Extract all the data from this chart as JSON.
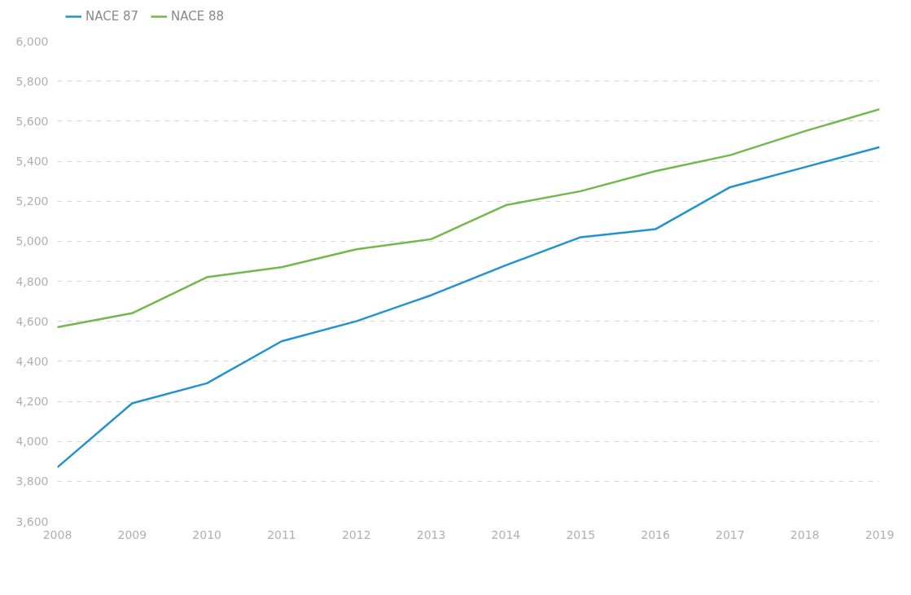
{
  "chart_data": {
    "type": "line",
    "x": [
      2008,
      2009,
      2010,
      2011,
      2012,
      2013,
      2014,
      2015,
      2016,
      2017,
      2018,
      2019
    ],
    "series": [
      {
        "name": "NACE 87",
        "color": "#1f93d0",
        "values": [
          3870,
          4190,
          4290,
          4500,
          4600,
          4730,
          4880,
          5020,
          5060,
          5270,
          5370,
          5470
        ]
      },
      {
        "name": "NACE 88",
        "color": "#72b84a",
        "values": [
          4570,
          4640,
          4820,
          4870,
          4960,
          5010,
          5180,
          5250,
          5350,
          5430,
          5550,
          5660
        ]
      }
    ],
    "xlim": [
      2008,
      2019
    ],
    "xticks": [
      2008,
      2009,
      2010,
      2011,
      2012,
      2013,
      2014,
      2015,
      2016,
      2017,
      2018,
      2019
    ],
    "ylim": [
      3600,
      6000
    ],
    "yticks": [
      {
        "value": 3600,
        "label": "3,600"
      },
      {
        "value": 3800,
        "label": "3,800"
      },
      {
        "value": 4000,
        "label": "4,000"
      },
      {
        "value": 4200,
        "label": "4,200"
      },
      {
        "value": 4400,
        "label": "4,400"
      },
      {
        "value": 4600,
        "label": "4,600"
      },
      {
        "value": 4800,
        "label": "4,800"
      },
      {
        "value": 5000,
        "label": "5,000"
      },
      {
        "value": 5200,
        "label": "5,200"
      },
      {
        "value": 5400,
        "label": "5,400"
      },
      {
        "value": 5600,
        "label": "5,600"
      },
      {
        "value": 5800,
        "label": "5,800"
      },
      {
        "value": 6000,
        "label": "6,000"
      }
    ],
    "grid": "y",
    "legend": "top left",
    "line_style": "solid"
  }
}
